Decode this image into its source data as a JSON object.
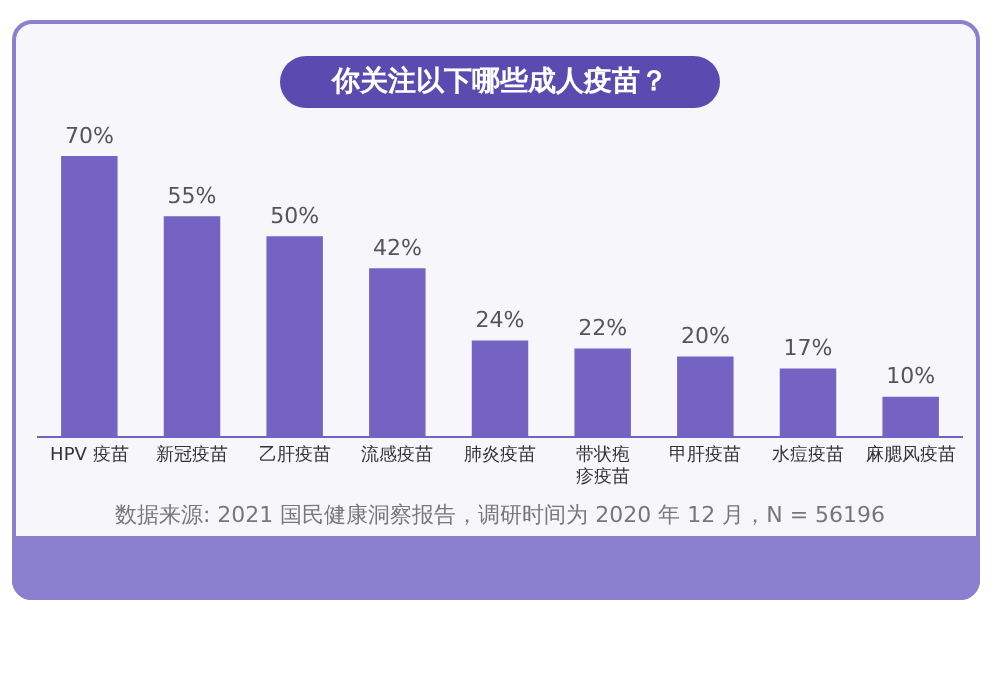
{
  "chart_data": {
    "type": "bar",
    "title": "你关注以下哪些成人疫苗？",
    "categories": [
      "HPV 疫苗",
      "新冠疫苗",
      "乙肝疫苗",
      "流感疫苗",
      "肺炎疫苗",
      "带状疱疹疫苗",
      "甲肝疫苗",
      "水痘疫苗",
      "麻腮风疫苗"
    ],
    "values": [
      70,
      55,
      50,
      42,
      24,
      22,
      20,
      17,
      10
    ],
    "value_labels": [
      "70%",
      "55%",
      "50%",
      "42%",
      "24%",
      "22%",
      "20%",
      "17%",
      "10%"
    ],
    "color": "#7563c4",
    "tick_labels": "x",
    "grid": false,
    "legend": false,
    "annotations": [
      "数据来源: 2021 国民健康洞察报告，调研时间为 2020 年 12 月，N = 56196"
    ]
  }
}
